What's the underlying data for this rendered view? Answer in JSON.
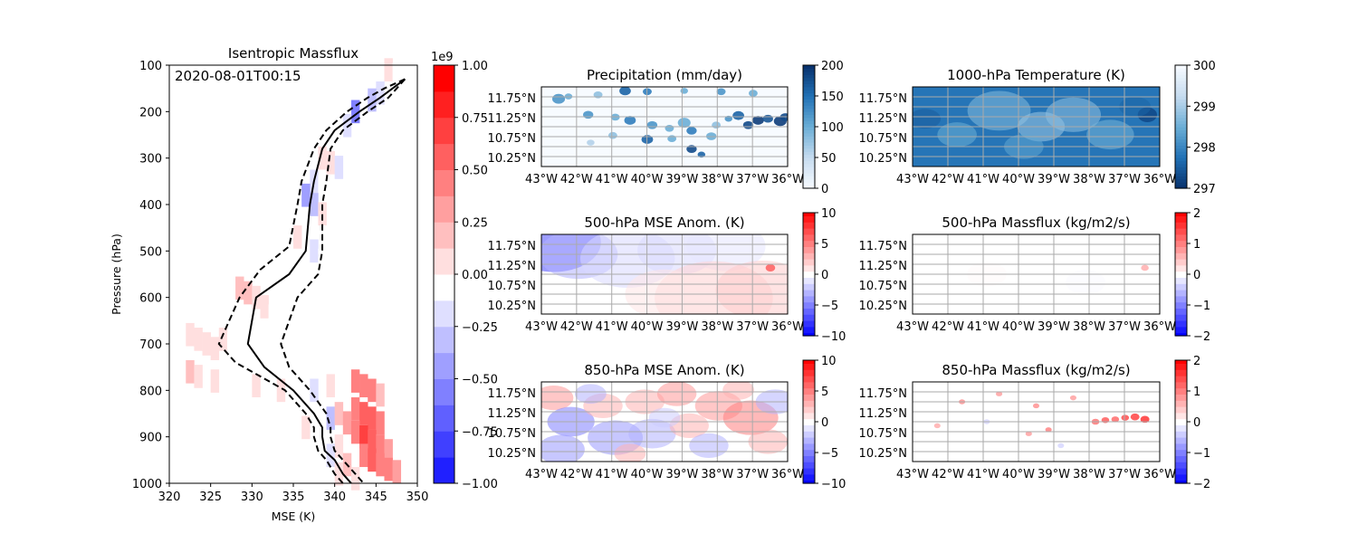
{
  "figure": {
    "timestamp": "2020-08-01T00:15"
  },
  "chart_data": [
    {
      "type": "heatmap",
      "title": "Isentropic Massflux",
      "xlabel": "MSE (K)",
      "ylabel": "Pressure (hPa)",
      "xlim": [
        320,
        350
      ],
      "ylim": [
        1000,
        100
      ],
      "xticks": [
        "320",
        "325",
        "330",
        "335",
        "340",
        "345",
        "350"
      ],
      "yticks": [
        "100",
        "200",
        "300",
        "400",
        "500",
        "600",
        "700",
        "800",
        "900",
        "1000"
      ],
      "colorbar": {
        "range": [
          -1.0,
          1.0
        ],
        "multiplier": "1e9",
        "ticks": [
          "−1.00",
          "−0.75",
          "−0.50",
          "−0.25",
          "0.00",
          "0.25",
          "0.50",
          "0.75",
          "1.00"
        ],
        "colormap": "bwr",
        "levels": 16
      },
      "cells": [
        [
          346.5,
          110,
          0.08
        ],
        [
          347.5,
          120,
          -0.05
        ],
        [
          345.5,
          160,
          -0.15
        ],
        [
          344.5,
          175,
          -0.2
        ],
        [
          342.5,
          200,
          -0.55
        ],
        [
          341.5,
          230,
          -0.12
        ],
        [
          340.5,
          250,
          0.05
        ],
        [
          338.5,
          300,
          0.1
        ],
        [
          339.5,
          310,
          0.15
        ],
        [
          340.5,
          320,
          -0.08
        ],
        [
          337.5,
          350,
          -0.15
        ],
        [
          338.5,
          360,
          0.05
        ],
        [
          336.5,
          380,
          -0.35
        ],
        [
          337.5,
          400,
          -0.2
        ],
        [
          338.5,
          420,
          0.08
        ],
        [
          336.5,
          440,
          0.05
        ],
        [
          335.5,
          470,
          0.08
        ],
        [
          337.5,
          500,
          -0.12
        ],
        [
          338.5,
          520,
          0.05
        ],
        [
          339.5,
          540,
          0.05
        ],
        [
          328.5,
          580,
          0.3
        ],
        [
          329.5,
          590,
          0.25
        ],
        [
          330.5,
          600,
          0.1
        ],
        [
          331.5,
          620,
          0.08
        ],
        [
          332.5,
          640,
          0.05
        ],
        [
          322.5,
          680,
          0.12
        ],
        [
          323.5,
          690,
          0.18
        ],
        [
          324.5,
          700,
          0.1
        ],
        [
          325.5,
          710,
          0.08
        ],
        [
          326.5,
          690,
          0.1
        ],
        [
          327.5,
          700,
          0.06
        ],
        [
          331.5,
          730,
          0.05
        ],
        [
          322.5,
          760,
          0.2
        ],
        [
          323.5,
          770,
          0.15
        ],
        [
          325.5,
          780,
          0.1
        ],
        [
          330.5,
          790,
          0.08
        ],
        [
          333.5,
          800,
          0.1
        ],
        [
          337.5,
          800,
          -0.12
        ],
        [
          339.5,
          790,
          0.15
        ],
        [
          342.5,
          780,
          0.45
        ],
        [
          343.5,
          790,
          0.55
        ],
        [
          344.5,
          800,
          0.5
        ],
        [
          345.5,
          810,
          0.3
        ],
        [
          342.5,
          840,
          0.55
        ],
        [
          343.5,
          850,
          0.65
        ],
        [
          344.5,
          860,
          0.6
        ],
        [
          345.5,
          870,
          0.45
        ],
        [
          339.5,
          860,
          -0.2
        ],
        [
          340.5,
          850,
          0.2
        ],
        [
          341.5,
          870,
          0.35
        ],
        [
          336.5,
          880,
          0.1
        ],
        [
          342.5,
          890,
          0.5
        ],
        [
          343.5,
          900,
          0.7
        ],
        [
          344.5,
          910,
          0.65
        ],
        [
          345.5,
          920,
          0.55
        ],
        [
          346.5,
          930,
          0.35
        ],
        [
          340.5,
          920,
          0.15
        ],
        [
          339.5,
          940,
          -0.1
        ],
        [
          343.5,
          940,
          0.5
        ],
        [
          344.5,
          950,
          0.6
        ],
        [
          345.5,
          960,
          0.55
        ],
        [
          346.5,
          970,
          0.5
        ],
        [
          347.5,
          975,
          0.35
        ],
        [
          341.5,
          960,
          0.2
        ],
        [
          340.5,
          980,
          0.1
        ],
        [
          342.5,
          990,
          0.15
        ]
      ],
      "series": [
        {
          "style": "solid",
          "x": [
            348.5,
            347.0,
            345.5,
            343.0,
            340.0,
            338.5,
            337.5,
            337.0,
            336.5,
            334.5,
            330.5,
            329.5,
            331.5,
            335.0,
            337.5,
            338.5,
            338.5,
            338.8,
            340.0,
            341.0,
            342.0
          ],
          "y": [
            130,
            150,
            170,
            200,
            240,
            280,
            350,
            400,
            500,
            550,
            600,
            700,
            750,
            800,
            850,
            880,
            900,
            930,
            950,
            980,
            1000
          ]
        },
        {
          "style": "dashed",
          "x": [
            348.5,
            346.0,
            344.0,
            341.5,
            339.0,
            337.5,
            336.0,
            335.5,
            334.5,
            331.0,
            328.5,
            326.0,
            328.0,
            334.0,
            336.5,
            337.5,
            337.5,
            338.0,
            339.0,
            340.0,
            341.0
          ],
          "y": [
            130,
            150,
            170,
            200,
            240,
            280,
            350,
            400,
            490,
            540,
            600,
            700,
            740,
            800,
            850,
            880,
            900,
            930,
            950,
            980,
            1000
          ]
        },
        {
          "style": "dashed",
          "x": [
            348.5,
            347.5,
            346.5,
            344.0,
            341.0,
            339.5,
            339.0,
            338.5,
            338.5,
            338.0,
            335.5,
            333.5,
            334.5,
            337.0,
            339.0,
            339.5,
            339.5,
            340.0,
            341.0,
            342.5,
            343.5
          ],
          "y": [
            130,
            150,
            170,
            200,
            240,
            280,
            350,
            400,
            500,
            550,
            600,
            700,
            750,
            800,
            850,
            880,
            900,
            930,
            950,
            980,
            1000
          ]
        }
      ]
    },
    {
      "type": "heatmap",
      "title": "Precipitation (mm/day)",
      "colormap": "Blues",
      "colorbar": {
        "range": [
          0,
          200
        ],
        "ticks": [
          "0",
          "50",
          "100",
          "150",
          "200"
        ]
      },
      "background": 0,
      "blobs": [
        [
          0.07,
          0.15,
          0.02,
          0.6
        ],
        [
          0.11,
          0.12,
          0.012,
          0.5
        ],
        [
          0.23,
          0.1,
          0.014,
          0.4
        ],
        [
          0.34,
          0.05,
          0.018,
          0.8
        ],
        [
          0.43,
          0.06,
          0.014,
          0.7
        ],
        [
          0.58,
          0.05,
          0.012,
          0.5
        ],
        [
          0.73,
          0.06,
          0.014,
          0.6
        ],
        [
          0.86,
          0.08,
          0.014,
          0.5
        ],
        [
          0.19,
          0.35,
          0.016,
          0.6
        ],
        [
          0.3,
          0.38,
          0.014,
          0.5
        ],
        [
          0.36,
          0.42,
          0.018,
          0.7
        ],
        [
          0.45,
          0.48,
          0.016,
          0.6
        ],
        [
          0.58,
          0.45,
          0.02,
          0.5
        ],
        [
          0.61,
          0.55,
          0.016,
          0.7
        ],
        [
          0.52,
          0.52,
          0.014,
          0.5
        ],
        [
          0.71,
          0.48,
          0.014,
          0.4
        ],
        [
          0.29,
          0.61,
          0.014,
          0.4
        ],
        [
          0.43,
          0.66,
          0.018,
          0.8
        ],
        [
          0.53,
          0.65,
          0.014,
          0.5
        ],
        [
          0.61,
          0.78,
          0.016,
          0.9
        ],
        [
          0.65,
          0.85,
          0.012,
          0.8
        ],
        [
          0.69,
          0.62,
          0.016,
          0.5
        ],
        [
          0.8,
          0.36,
          0.018,
          0.8
        ],
        [
          0.84,
          0.48,
          0.016,
          0.9
        ],
        [
          0.88,
          0.42,
          0.018,
          0.95
        ],
        [
          0.92,
          0.4,
          0.016,
          0.85
        ],
        [
          0.97,
          0.43,
          0.02,
          0.95
        ],
        [
          0.99,
          0.38,
          0.016,
          0.9
        ],
        [
          0.76,
          0.4,
          0.012,
          0.6
        ],
        [
          0.2,
          0.7,
          0.012,
          0.3
        ]
      ]
    },
    {
      "type": "heatmap",
      "title": "1000-hPa Temperature (K)",
      "colormap": "Blues_r",
      "colorbar": {
        "range": [
          297,
          300
        ],
        "ticks": [
          "297",
          "298",
          "299",
          "300"
        ]
      },
      "background": 297.8,
      "blobs": [
        [
          0.35,
          0.3,
          0.08,
          298.7
        ],
        [
          0.52,
          0.5,
          0.06,
          298.9
        ],
        [
          0.65,
          0.35,
          0.07,
          298.8
        ],
        [
          0.8,
          0.6,
          0.06,
          298.6
        ],
        [
          0.18,
          0.6,
          0.05,
          298.5
        ],
        [
          0.45,
          0.75,
          0.05,
          298.4
        ],
        [
          0.95,
          0.35,
          0.03,
          297.3
        ],
        [
          0.9,
          0.25,
          0.04,
          297.6
        ],
        [
          0.05,
          0.4,
          0.04,
          297.5
        ]
      ]
    },
    {
      "type": "heatmap",
      "title": "500-hPa MSE Anom. (K)",
      "colormap": "bwr",
      "colorbar": {
        "range": [
          -10,
          10
        ],
        "ticks": [
          "−10",
          "−5",
          "0",
          "5",
          "10"
        ]
      },
      "background": 0,
      "blobs": [
        [
          0.05,
          0.1,
          0.12,
          -7
        ],
        [
          0.15,
          0.25,
          0.1,
          -3
        ],
        [
          0.35,
          0.3,
          0.12,
          -1.5
        ],
        [
          0.55,
          0.2,
          0.1,
          -1.5
        ],
        [
          0.75,
          0.15,
          0.1,
          -1
        ],
        [
          0.7,
          0.8,
          0.15,
          1.8
        ],
        [
          0.9,
          0.7,
          0.12,
          2
        ],
        [
          0.5,
          0.75,
          0.1,
          1
        ],
        [
          0.93,
          0.42,
          0.015,
          6
        ]
      ]
    },
    {
      "type": "heatmap",
      "title": "500-hPa Massflux (kg/m2/s)",
      "colormap": "bwr",
      "colorbar": {
        "range": [
          -2,
          2
        ],
        "ticks": [
          "−2",
          "−1",
          "0",
          "1",
          "2"
        ]
      },
      "background": 0,
      "blobs": [
        [
          0.94,
          0.42,
          0.012,
          0.6
        ],
        [
          0.3,
          0.5,
          0.05,
          0.05
        ],
        [
          0.7,
          0.6,
          0.05,
          -0.05
        ]
      ]
    },
    {
      "type": "heatmap",
      "title": "850-hPa MSE Anom. (K)",
      "colormap": "bwr",
      "colorbar": {
        "range": [
          -10,
          10
        ],
        "ticks": [
          "−10",
          "−5",
          "0",
          "5",
          "10"
        ]
      },
      "background": 0,
      "blobs": [
        [
          0.05,
          0.2,
          0.05,
          4
        ],
        [
          0.12,
          0.5,
          0.06,
          -5
        ],
        [
          0.08,
          0.85,
          0.06,
          -4
        ],
        [
          0.25,
          0.3,
          0.05,
          3
        ],
        [
          0.3,
          0.7,
          0.07,
          -4
        ],
        [
          0.42,
          0.25,
          0.05,
          3
        ],
        [
          0.45,
          0.65,
          0.06,
          -3
        ],
        [
          0.55,
          0.15,
          0.05,
          4
        ],
        [
          0.6,
          0.55,
          0.05,
          3
        ],
        [
          0.68,
          0.8,
          0.05,
          -3
        ],
        [
          0.72,
          0.3,
          0.06,
          4
        ],
        [
          0.85,
          0.45,
          0.07,
          5
        ],
        [
          0.95,
          0.25,
          0.05,
          -3
        ],
        [
          0.92,
          0.75,
          0.05,
          3
        ],
        [
          0.2,
          0.15,
          0.04,
          -3
        ],
        [
          0.36,
          0.9,
          0.04,
          3
        ],
        [
          0.8,
          0.1,
          0.04,
          3
        ],
        [
          0.5,
          0.45,
          0.04,
          -2
        ]
      ]
    },
    {
      "type": "heatmap",
      "title": "850-hPa Massflux (kg/m2/s)",
      "colormap": "bwr",
      "colorbar": {
        "range": [
          -2,
          2
        ],
        "ticks": [
          "−2",
          "−1",
          "0",
          "1",
          "2"
        ]
      },
      "background": 0,
      "blobs": [
        [
          0.74,
          0.5,
          0.012,
          1.0
        ],
        [
          0.78,
          0.48,
          0.012,
          1.2
        ],
        [
          0.82,
          0.47,
          0.012,
          1.1
        ],
        [
          0.86,
          0.45,
          0.012,
          1.3
        ],
        [
          0.9,
          0.44,
          0.014,
          1.4
        ],
        [
          0.94,
          0.47,
          0.014,
          1.5
        ],
        [
          0.2,
          0.25,
          0.01,
          0.8
        ],
        [
          0.35,
          0.15,
          0.01,
          0.7
        ],
        [
          0.5,
          0.3,
          0.01,
          0.8
        ],
        [
          0.55,
          0.6,
          0.01,
          0.9
        ],
        [
          0.47,
          0.65,
          0.01,
          0.7
        ],
        [
          0.1,
          0.55,
          0.01,
          0.6
        ],
        [
          0.65,
          0.2,
          0.01,
          0.7
        ],
        [
          0.3,
          0.5,
          0.01,
          -0.3
        ],
        [
          0.6,
          0.8,
          0.01,
          -0.3
        ]
      ]
    }
  ],
  "map_axes": {
    "xticks": [
      "43°W",
      "42°W",
      "41°W",
      "40°W",
      "39°W",
      "38°W",
      "37°W",
      "36°W"
    ],
    "yticks": [
      "11.75°N",
      "11.25°N",
      "10.75°N",
      "10.25°N"
    ]
  }
}
